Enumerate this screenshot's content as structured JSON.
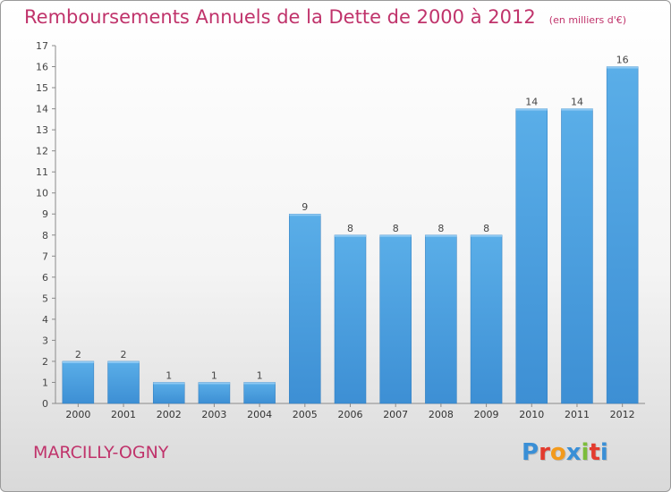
{
  "header": {
    "title": "Remboursements Annuels de la Dette de 2000 à 2012",
    "unit": "(en milliers d'€)"
  },
  "footer": {
    "commune": "MARCILLY-OGNY",
    "logo_letters": [
      "P",
      "r",
      "o",
      "x",
      "i",
      "t",
      "i"
    ],
    "logo_colors": [
      "#3a8fd6",
      "#e33b2e",
      "#f39a1c",
      "#3a8fd6",
      "#7cbd3b",
      "#e33b2e",
      "#3a8fd6"
    ]
  },
  "chart_data": {
    "type": "bar",
    "title": "Remboursements Annuels de la Dette de 2000 à 2012",
    "ylabel": "",
    "xlabel": "",
    "categories": [
      "2000",
      "2001",
      "2002",
      "2003",
      "2004",
      "2005",
      "2006",
      "2007",
      "2008",
      "2009",
      "2010",
      "2011",
      "2012"
    ],
    "values": [
      2,
      2,
      1,
      1,
      1,
      9,
      8,
      8,
      8,
      8,
      14,
      14,
      16
    ],
    "ylim": [
      0,
      17
    ],
    "yticks": [
      "0",
      "1",
      "2",
      "3",
      "4",
      "5",
      "6",
      "7",
      "8",
      "9",
      "10",
      "11",
      "12",
      "13",
      "14",
      "15",
      "16",
      "17"
    ],
    "grid": false,
    "bar_color": "#3d8fd4",
    "bar_color_light": "#5aaee8"
  }
}
